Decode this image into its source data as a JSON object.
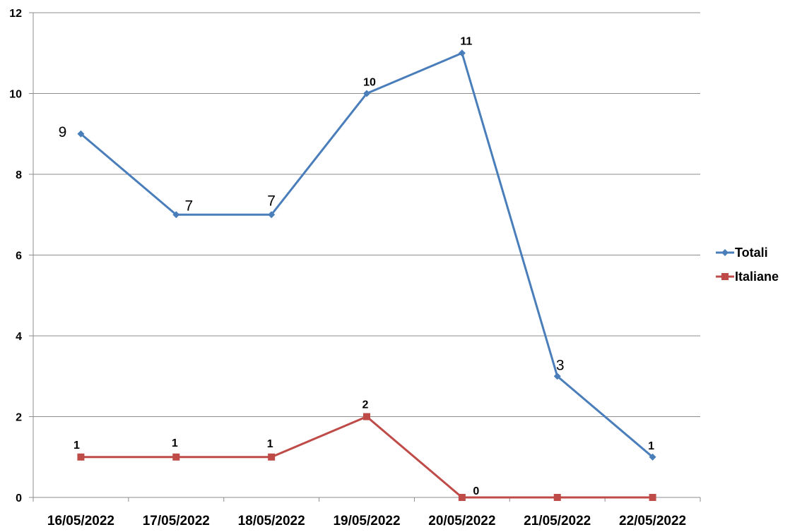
{
  "chart_data": {
    "type": "line",
    "title": "",
    "xlabel": "",
    "ylabel": "",
    "categories": [
      "16/05/2022",
      "17/05/2022",
      "18/05/2022",
      "19/05/2022",
      "20/05/2022",
      "21/05/2022",
      "22/05/2022"
    ],
    "ylim": [
      0,
      12
    ],
    "yticks": [
      "0",
      "2",
      "4",
      "6",
      "8",
      "10",
      "12"
    ],
    "grid": true,
    "legend_position": "right",
    "series": [
      {
        "name": "Totali",
        "color": "#4a7ebb",
        "marker": "diamond",
        "values": [
          9,
          7,
          7,
          10,
          11,
          3,
          1
        ],
        "labels": [
          "9",
          "7",
          "7",
          "10",
          "11",
          "3",
          "1"
        ]
      },
      {
        "name": "Italiane",
        "color": "#be4b48",
        "marker": "square",
        "values": [
          1,
          1,
          1,
          2,
          0,
          0,
          0
        ],
        "labels": [
          "1",
          "1",
          "1",
          "2",
          "0",
          "",
          ""
        ]
      }
    ]
  }
}
